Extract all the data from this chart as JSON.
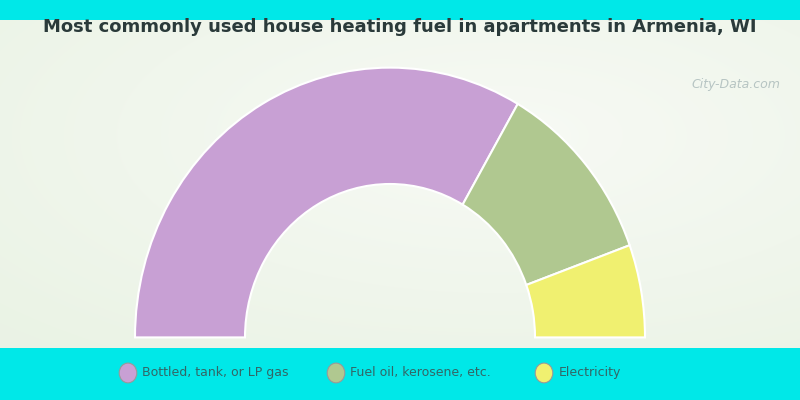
{
  "title": "Most commonly used house heating fuel in apartments in Armenia, WI",
  "title_fontsize": 13,
  "background_cyan": "#00e8e8",
  "segments": [
    {
      "label": "Bottled, tank, or LP gas",
      "value": 66.7,
      "color": "#c8a0d4"
    },
    {
      "label": "Fuel oil, kerosene, etc.",
      "value": 22.2,
      "color": "#b0c890"
    },
    {
      "label": "Electricity",
      "value": 11.1,
      "color": "#f0f070"
    }
  ],
  "watermark": "City-Data.com",
  "legend_text_color": "#336666"
}
